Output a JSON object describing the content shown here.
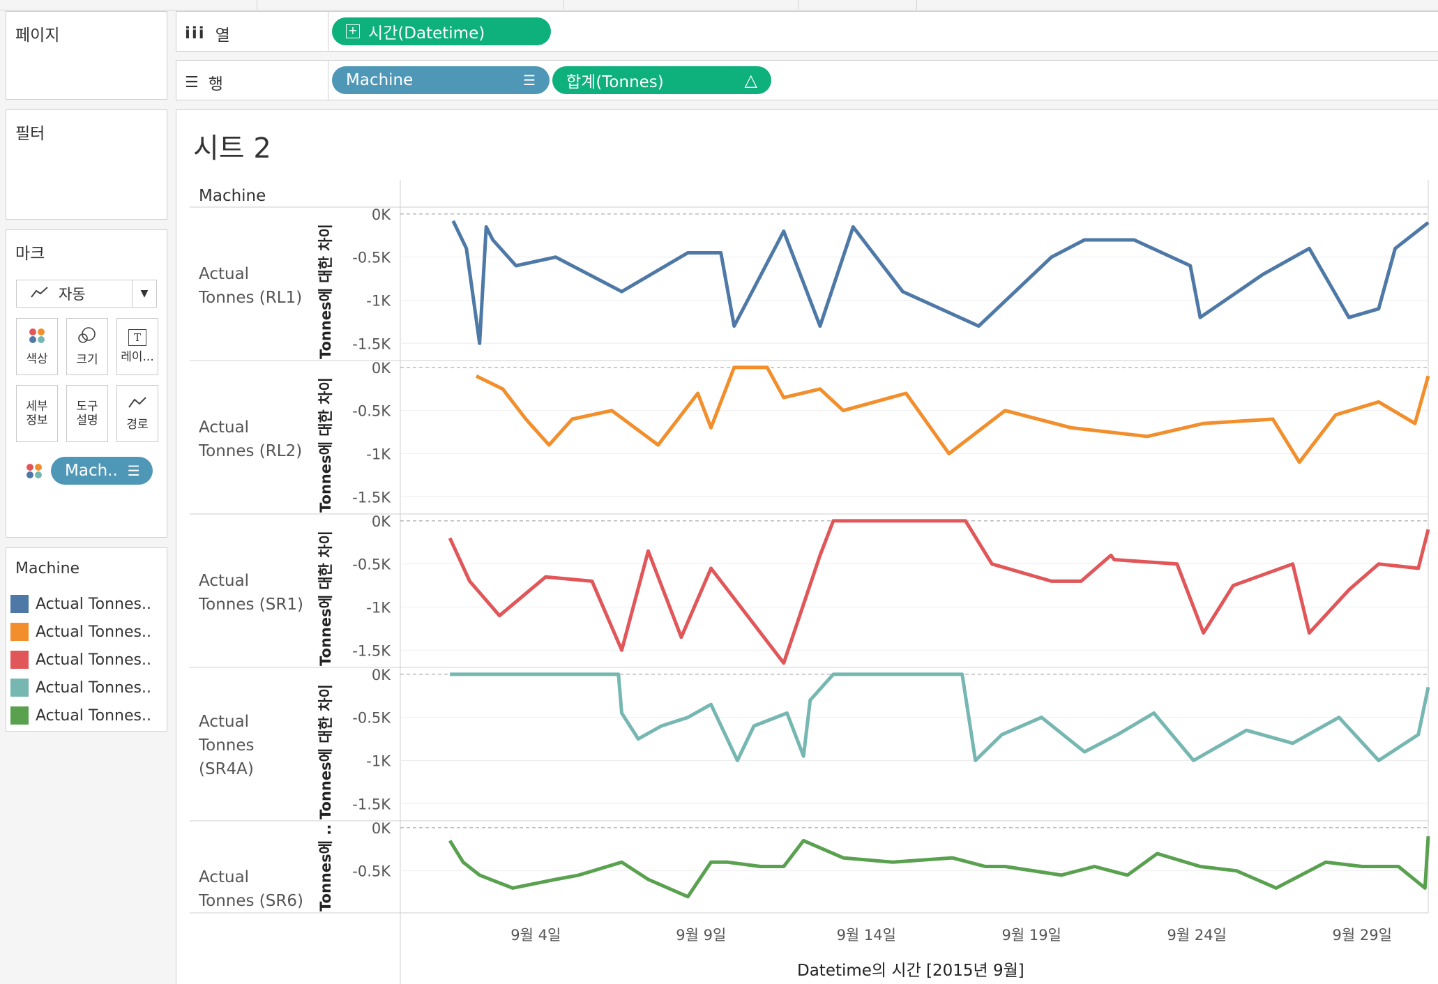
{
  "shelves": {
    "pages_label": "페이지",
    "filters_label": "필터",
    "columns_label": "열",
    "rows_label": "행",
    "columns_pill": "시간(Datetime)",
    "rows_pill_1": "Machine",
    "rows_pill_2": "합계(Tonnes)",
    "rows_pill_2_icon": "△"
  },
  "marks": {
    "title": "마크",
    "type_label": "자동",
    "buttons": [
      "색상",
      "크기",
      "레이...",
      "세부\n정보",
      "도구\n설명",
      "경로"
    ],
    "color_pill": "Mach.."
  },
  "legend": {
    "title": "Machine",
    "items": [
      {
        "label": "Actual Tonnes..",
        "color": "#4e79a7"
      },
      {
        "label": "Actual Tonnes..",
        "color": "#f28e2b"
      },
      {
        "label": "Actual Tonnes..",
        "color": "#e15759"
      },
      {
        "label": "Actual Tonnes..",
        "color": "#76b7b2"
      },
      {
        "label": "Actual Tonnes..",
        "color": "#59a14f"
      }
    ]
  },
  "view": {
    "sheet_title": "시트 2",
    "row_header": "Machine",
    "x_axis_title": "Datetime의 시간 [2015년 9월]",
    "y_axis_title": "Tonnes에 대한 차이",
    "y_axis_title_short": "Tonnes에 ..",
    "y_tick_labels": [
      "0K",
      "-0.5K",
      "-1K",
      "-1.5K"
    ],
    "x_tick_labels": [
      "9월 4일",
      "9월 9일",
      "9월 14일",
      "9월 19일",
      "9월 24일",
      "9월 29일"
    ]
  },
  "chart_data": {
    "type": "line",
    "x_unit": "2015년 9월 (day)",
    "x_ticks": [
      4,
      9,
      14,
      19,
      24,
      29
    ],
    "x_range": [
      -0.1,
      31.0
    ],
    "ylim": [
      -1700,
      80
    ],
    "y_ticks": [
      0,
      -500,
      -1000,
      -1500
    ],
    "series": [
      {
        "name": "Actual Tonnes (RL1)",
        "color": "#4e79a7",
        "x": [
          1.5,
          1.9,
          2.3,
          2.5,
          2.7,
          3.4,
          4.6,
          6.6,
          8.6,
          9.6,
          10.0,
          11.5,
          12.6,
          13.6,
          15.1,
          17.4,
          19.6,
          20.6,
          22.1,
          23.8,
          24.1,
          26.0,
          27.4,
          28.6,
          29.5,
          30.0,
          31.0
        ],
        "y": [
          -80,
          -400,
          -1500,
          -150,
          -300,
          -600,
          -500,
          -900,
          -450,
          -450,
          -1300,
          -200,
          -1300,
          -150,
          -900,
          -1300,
          -500,
          -300,
          -300,
          -600,
          -1200,
          -700,
          -400,
          -1200,
          -1100,
          -400,
          -100
        ]
      },
      {
        "name": "Actual Tonnes (RL2)",
        "color": "#f28e2b",
        "x": [
          2.2,
          3.0,
          3.7,
          4.4,
          5.1,
          6.3,
          7.7,
          8.9,
          9.3,
          10.0,
          10.5,
          11.0,
          11.5,
          12.6,
          13.3,
          15.2,
          16.5,
          18.2,
          20.2,
          22.5,
          24.2,
          26.3,
          27.1,
          28.2,
          29.5,
          30.6,
          31.0
        ],
        "y": [
          -100,
          -250,
          -600,
          -900,
          -600,
          -500,
          -900,
          -300,
          -700,
          0,
          0,
          0,
          -350,
          -250,
          -500,
          -300,
          -1000,
          -500,
          -700,
          -800,
          -650,
          -600,
          -1100,
          -550,
          -400,
          -650,
          -100
        ]
      },
      {
        "name": "Actual Tonnes (SR1)",
        "color": "#e15759",
        "x": [
          1.4,
          2.0,
          2.9,
          4.3,
          5.7,
          6.6,
          7.4,
          8.4,
          9.3,
          10.4,
          11.5,
          12.6,
          13.0,
          17.0,
          17.8,
          19.6,
          20.5,
          21.4,
          21.5,
          23.4,
          24.2,
          25.1,
          26.9,
          27.4,
          28.6,
          29.5,
          30.7,
          31.0
        ],
        "y": [
          -200,
          -700,
          -1100,
          -650,
          -700,
          -1500,
          -350,
          -1350,
          -550,
          -1100,
          -1650,
          -400,
          0,
          0,
          -500,
          -700,
          -700,
          -400,
          -450,
          -500,
          -1300,
          -750,
          -500,
          -1300,
          -800,
          -500,
          -550,
          -100
        ]
      },
      {
        "name": "Actual Tonnes (SR4A)",
        "color": "#76b7b2",
        "x": [
          1.4,
          6.5,
          6.6,
          7.1,
          7.8,
          8.6,
          9.3,
          10.1,
          10.6,
          11.6,
          12.1,
          12.3,
          13.0,
          16.9,
          17.3,
          18.1,
          19.3,
          20.6,
          21.6,
          22.7,
          23.9,
          25.5,
          26.9,
          28.3,
          29.5,
          30.7,
          31.0
        ],
        "y": [
          0,
          0,
          -450,
          -750,
          -600,
          -500,
          -350,
          -1000,
          -600,
          -450,
          -950,
          -300,
          0,
          0,
          -1000,
          -700,
          -500,
          -900,
          -700,
          -450,
          -1000,
          -650,
          -800,
          -500,
          -1000,
          -700,
          -150
        ]
      },
      {
        "name": "Actual Tonnes (SR6)",
        "color": "#59a14f",
        "x": [
          1.4,
          1.8,
          2.3,
          3.3,
          4.6,
          5.3,
          6.6,
          7.4,
          8.6,
          9.3,
          9.8,
          10.8,
          11.5,
          12.1,
          13.3,
          14.8,
          16.6,
          17.6,
          18.2,
          19.9,
          20.9,
          21.9,
          22.8,
          24.1,
          25.2,
          26.4,
          27.9,
          29.0,
          30.1,
          30.9,
          31.0
        ],
        "y": [
          -150,
          -400,
          -550,
          -700,
          -600,
          -550,
          -400,
          -600,
          -800,
          -400,
          -400,
          -450,
          -450,
          -150,
          -350,
          -400,
          -350,
          -450,
          -450,
          -550,
          -450,
          -550,
          -300,
          -450,
          -500,
          -700,
          -400,
          -450,
          -450,
          -700,
          -100
        ]
      }
    ]
  }
}
